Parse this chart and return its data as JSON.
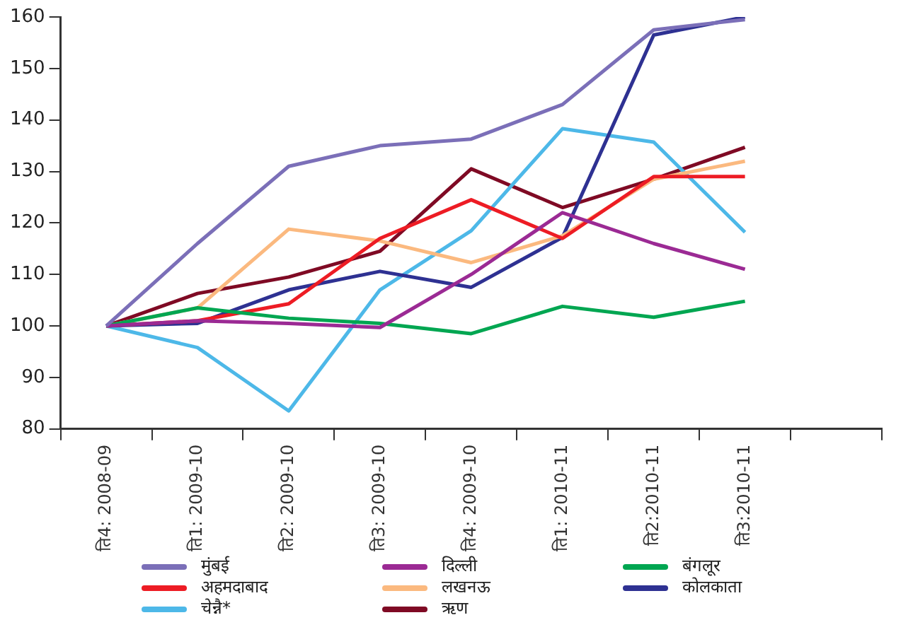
{
  "chart_data": {
    "type": "line",
    "categories": [
      "ति4: 2008-09",
      "ति1: 2009-10",
      "ति2: 2009-10",
      "ति3: 2009-10",
      "ति4: 2009-10",
      "ति1: 2010-11",
      "ति2:2010-11",
      "ति3:2010-11",
      null
    ],
    "ylim": [
      80,
      160
    ],
    "yticks": [
      80,
      90,
      100,
      110,
      120,
      130,
      140,
      150,
      160
    ],
    "grid": false,
    "legend": "bottom",
    "marker": "none",
    "line_style": "solid",
    "series": [
      {
        "name": "मुंबई",
        "color": "#7b6fb8",
        "values": [
          100,
          116,
          131,
          135,
          136.3,
          143,
          157.5,
          159.5,
          null
        ]
      },
      {
        "name": "दिल्ली",
        "color": "#9b2a94",
        "values": [
          100,
          101,
          100.5,
          99.7,
          110,
          122,
          116,
          111,
          null
        ]
      },
      {
        "name": "बंगलूर",
        "color": "#00a651",
        "values": [
          100,
          103.5,
          101.5,
          100.5,
          98.5,
          103.8,
          101.7,
          104.8,
          null
        ]
      },
      {
        "name": "अहमदाबाद",
        "color": "#ed1c24",
        "values": [
          100,
          101,
          104.3,
          117,
          124.5,
          117,
          129,
          129,
          null
        ]
      },
      {
        "name": "लखनऊ",
        "color": "#fbb97f",
        "values": [
          100,
          103.5,
          118.8,
          116.5,
          112.3,
          117.5,
          128.5,
          132,
          null
        ]
      },
      {
        "name": "कोलकाता",
        "color": "#2e3192",
        "values": [
          100,
          100.5,
          107,
          110.6,
          107.5,
          117.2,
          156.5,
          160,
          null
        ]
      },
      {
        "name": "चेन्नै*",
        "color": "#4db8e8",
        "values": [
          100,
          95.8,
          83.5,
          107,
          118.5,
          138.3,
          135.7,
          118.2,
          null
        ]
      },
      {
        "name": "ऋण",
        "color": "#7f0a24",
        "values": [
          100,
          106.3,
          109.5,
          114.5,
          130.5,
          123,
          128.5,
          134.7,
          null
        ]
      }
    ]
  }
}
